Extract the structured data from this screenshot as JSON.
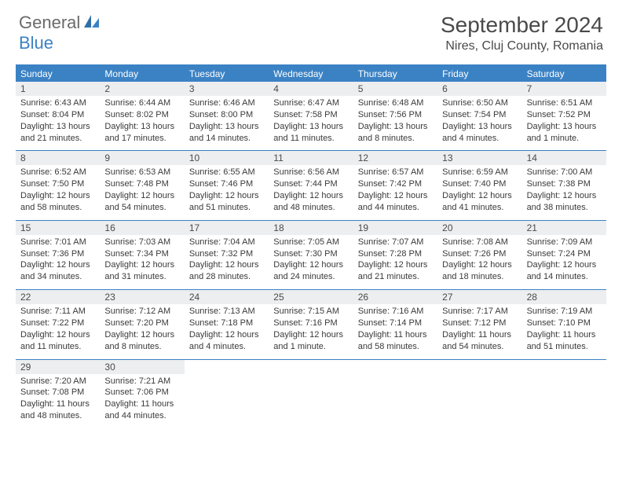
{
  "brand": {
    "word1": "General",
    "word2": "Blue"
  },
  "title": "September 2024",
  "location": "Nires, Cluj County, Romania",
  "colors": {
    "accent": "#3b82c4",
    "strip": "#eceeef",
    "text": "#3a3a3a",
    "heading": "#4a4a4a",
    "bg": "#ffffff"
  },
  "weekdays": [
    "Sunday",
    "Monday",
    "Tuesday",
    "Wednesday",
    "Thursday",
    "Friday",
    "Saturday"
  ],
  "weeks": [
    [
      {
        "n": "1",
        "sunrise": "6:43 AM",
        "sunset": "8:04 PM",
        "daylight": "13 hours and 21 minutes."
      },
      {
        "n": "2",
        "sunrise": "6:44 AM",
        "sunset": "8:02 PM",
        "daylight": "13 hours and 17 minutes."
      },
      {
        "n": "3",
        "sunrise": "6:46 AM",
        "sunset": "8:00 PM",
        "daylight": "13 hours and 14 minutes."
      },
      {
        "n": "4",
        "sunrise": "6:47 AM",
        "sunset": "7:58 PM",
        "daylight": "13 hours and 11 minutes."
      },
      {
        "n": "5",
        "sunrise": "6:48 AM",
        "sunset": "7:56 PM",
        "daylight": "13 hours and 8 minutes."
      },
      {
        "n": "6",
        "sunrise": "6:50 AM",
        "sunset": "7:54 PM",
        "daylight": "13 hours and 4 minutes."
      },
      {
        "n": "7",
        "sunrise": "6:51 AM",
        "sunset": "7:52 PM",
        "daylight": "13 hours and 1 minute."
      }
    ],
    [
      {
        "n": "8",
        "sunrise": "6:52 AM",
        "sunset": "7:50 PM",
        "daylight": "12 hours and 58 minutes."
      },
      {
        "n": "9",
        "sunrise": "6:53 AM",
        "sunset": "7:48 PM",
        "daylight": "12 hours and 54 minutes."
      },
      {
        "n": "10",
        "sunrise": "6:55 AM",
        "sunset": "7:46 PM",
        "daylight": "12 hours and 51 minutes."
      },
      {
        "n": "11",
        "sunrise": "6:56 AM",
        "sunset": "7:44 PM",
        "daylight": "12 hours and 48 minutes."
      },
      {
        "n": "12",
        "sunrise": "6:57 AM",
        "sunset": "7:42 PM",
        "daylight": "12 hours and 44 minutes."
      },
      {
        "n": "13",
        "sunrise": "6:59 AM",
        "sunset": "7:40 PM",
        "daylight": "12 hours and 41 minutes."
      },
      {
        "n": "14",
        "sunrise": "7:00 AM",
        "sunset": "7:38 PM",
        "daylight": "12 hours and 38 minutes."
      }
    ],
    [
      {
        "n": "15",
        "sunrise": "7:01 AM",
        "sunset": "7:36 PM",
        "daylight": "12 hours and 34 minutes."
      },
      {
        "n": "16",
        "sunrise": "7:03 AM",
        "sunset": "7:34 PM",
        "daylight": "12 hours and 31 minutes."
      },
      {
        "n": "17",
        "sunrise": "7:04 AM",
        "sunset": "7:32 PM",
        "daylight": "12 hours and 28 minutes."
      },
      {
        "n": "18",
        "sunrise": "7:05 AM",
        "sunset": "7:30 PM",
        "daylight": "12 hours and 24 minutes."
      },
      {
        "n": "19",
        "sunrise": "7:07 AM",
        "sunset": "7:28 PM",
        "daylight": "12 hours and 21 minutes."
      },
      {
        "n": "20",
        "sunrise": "7:08 AM",
        "sunset": "7:26 PM",
        "daylight": "12 hours and 18 minutes."
      },
      {
        "n": "21",
        "sunrise": "7:09 AM",
        "sunset": "7:24 PM",
        "daylight": "12 hours and 14 minutes."
      }
    ],
    [
      {
        "n": "22",
        "sunrise": "7:11 AM",
        "sunset": "7:22 PM",
        "daylight": "12 hours and 11 minutes."
      },
      {
        "n": "23",
        "sunrise": "7:12 AM",
        "sunset": "7:20 PM",
        "daylight": "12 hours and 8 minutes."
      },
      {
        "n": "24",
        "sunrise": "7:13 AM",
        "sunset": "7:18 PM",
        "daylight": "12 hours and 4 minutes."
      },
      {
        "n": "25",
        "sunrise": "7:15 AM",
        "sunset": "7:16 PM",
        "daylight": "12 hours and 1 minute."
      },
      {
        "n": "26",
        "sunrise": "7:16 AM",
        "sunset": "7:14 PM",
        "daylight": "11 hours and 58 minutes."
      },
      {
        "n": "27",
        "sunrise": "7:17 AM",
        "sunset": "7:12 PM",
        "daylight": "11 hours and 54 minutes."
      },
      {
        "n": "28",
        "sunrise": "7:19 AM",
        "sunset": "7:10 PM",
        "daylight": "11 hours and 51 minutes."
      }
    ],
    [
      {
        "n": "29",
        "sunrise": "7:20 AM",
        "sunset": "7:08 PM",
        "daylight": "11 hours and 48 minutes."
      },
      {
        "n": "30",
        "sunrise": "7:21 AM",
        "sunset": "7:06 PM",
        "daylight": "11 hours and 44 minutes."
      },
      null,
      null,
      null,
      null,
      null
    ]
  ],
  "labels": {
    "sunrise": "Sunrise:",
    "sunset": "Sunset:",
    "daylight": "Daylight:"
  }
}
